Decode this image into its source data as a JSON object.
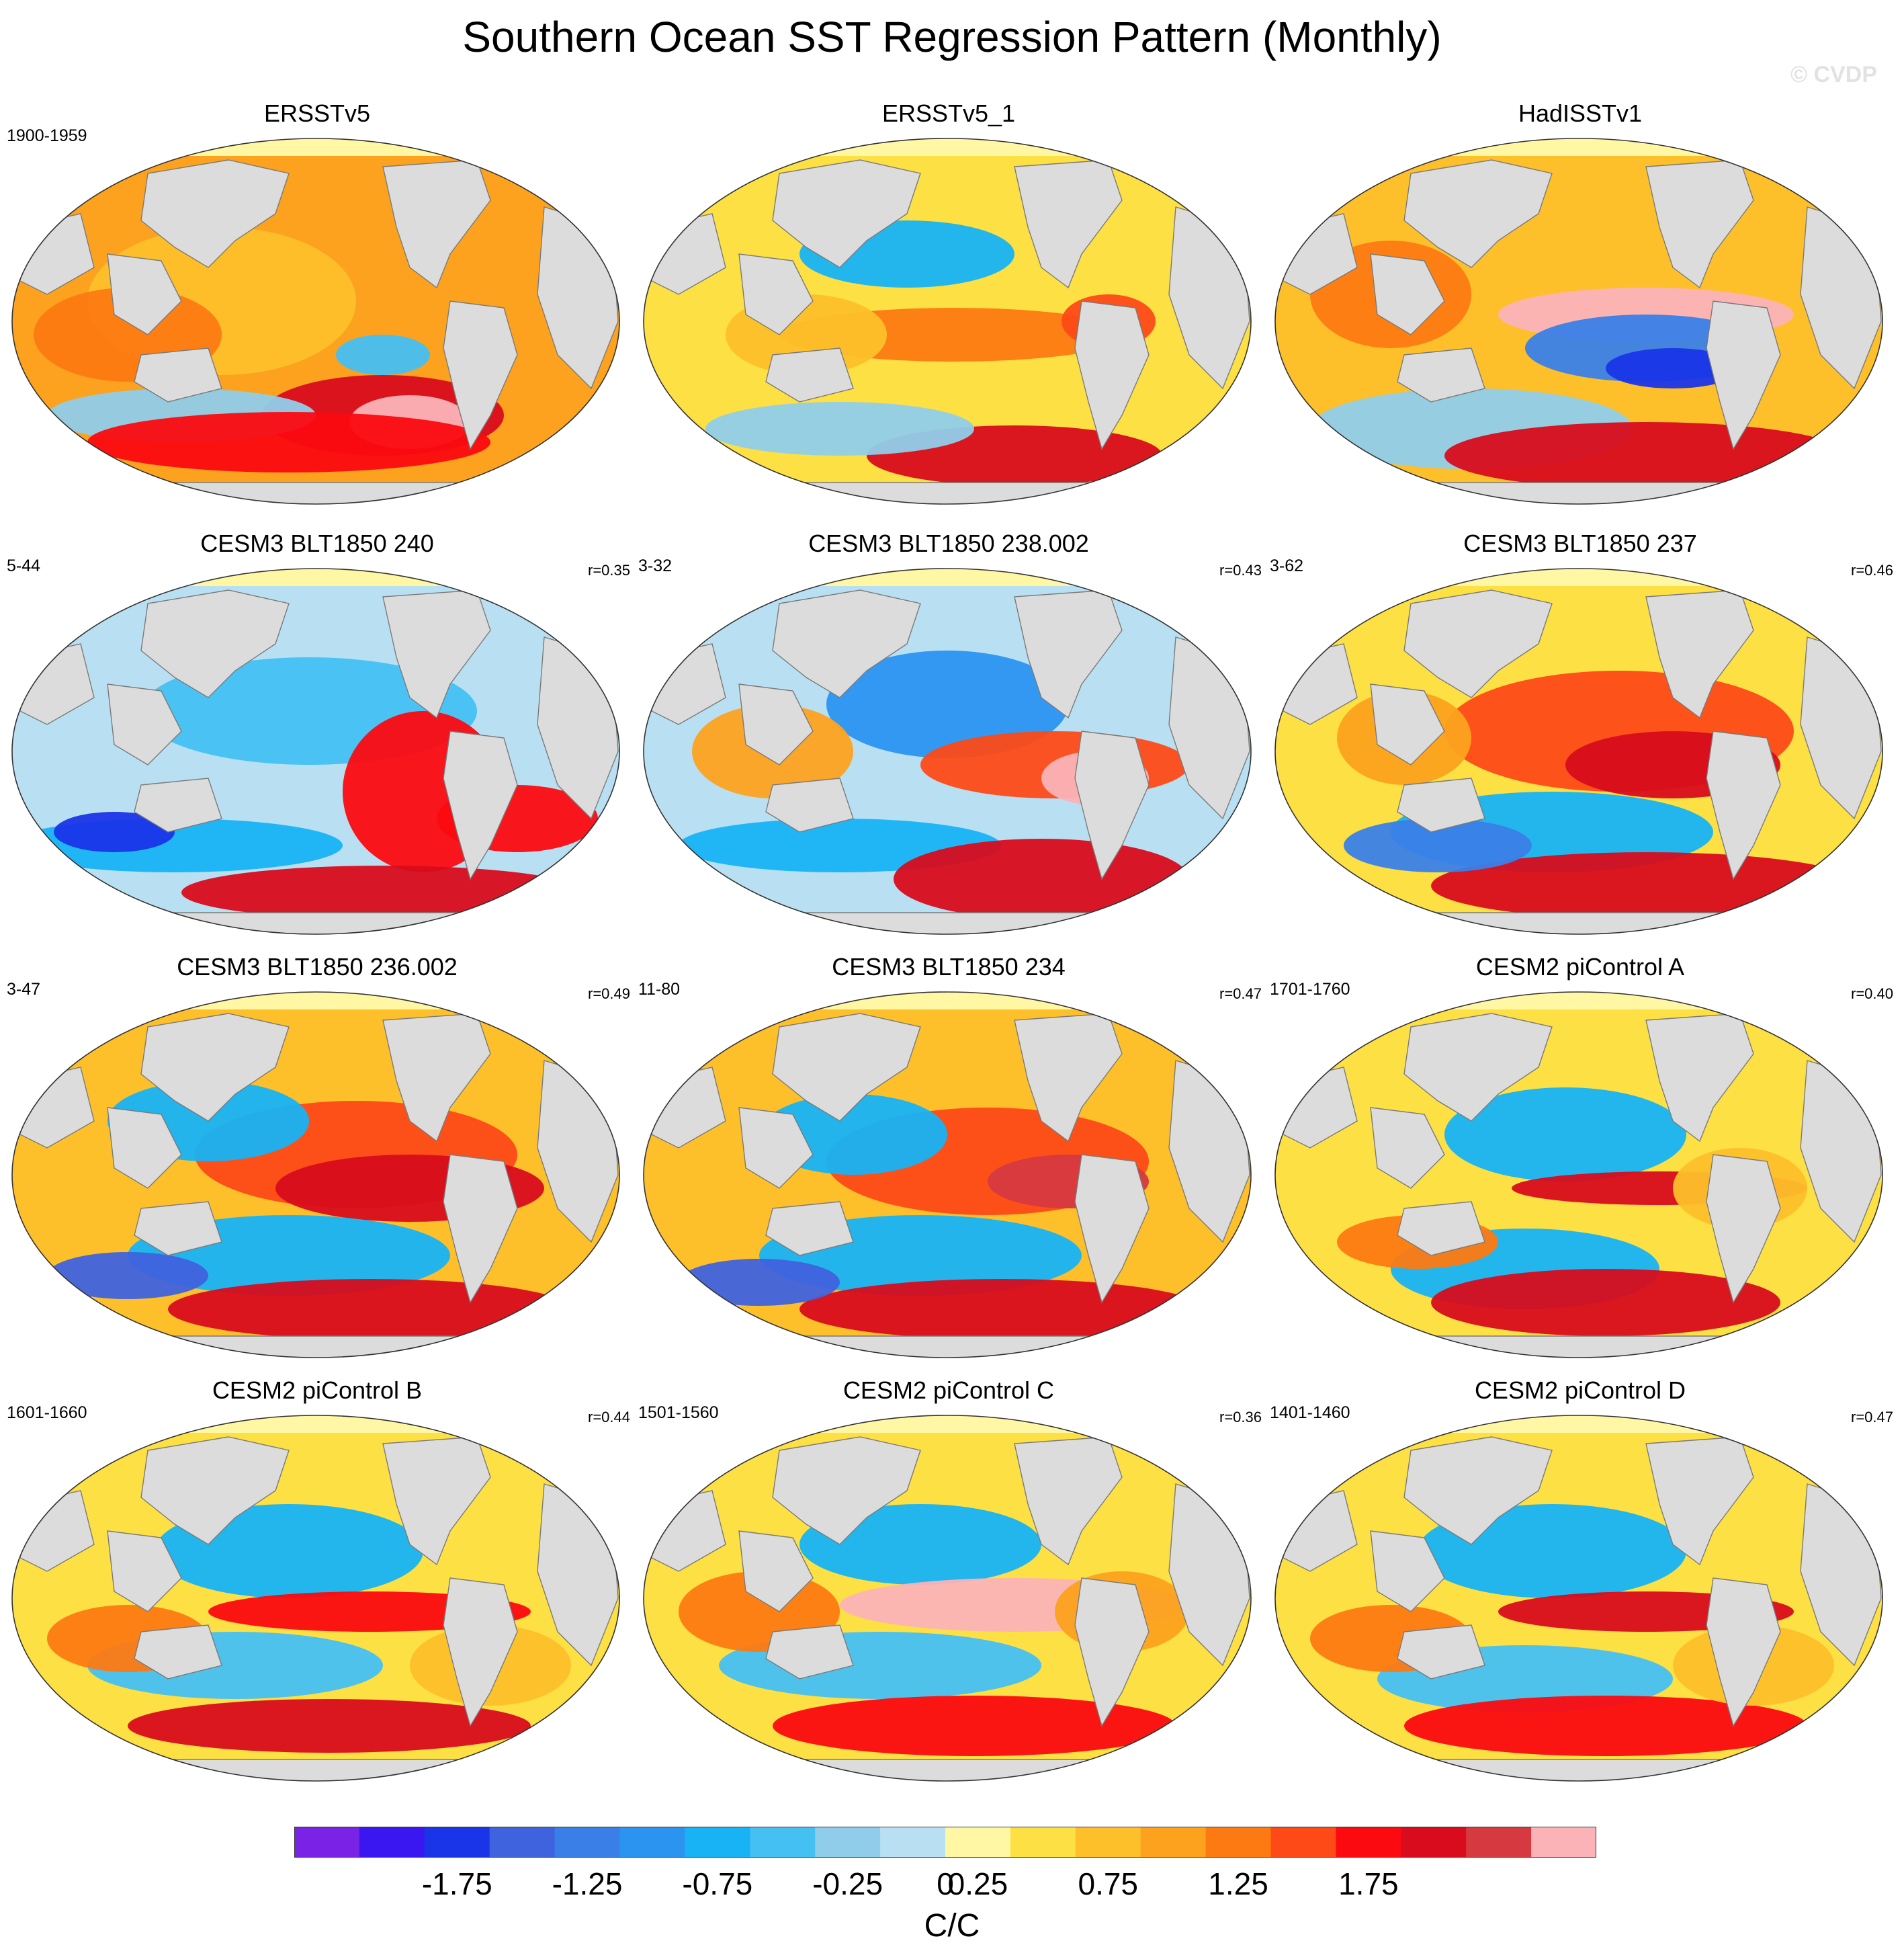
{
  "title": "Southern Ocean SST Regression Pattern (Monthly)",
  "watermark": "© CVDP",
  "panels": [
    {
      "name": "ERSSTv5",
      "years": "1900-1959",
      "r": ""
    },
    {
      "name": "ERSSTv5_1",
      "years": "",
      "r": ""
    },
    {
      "name": "HadISSTv1",
      "years": "",
      "r": ""
    },
    {
      "name": "CESM3 BLT1850 240",
      "years": "5-44",
      "r": "r=0.35"
    },
    {
      "name": "CESM3 BLT1850 238.002",
      "years": "3-32",
      "r": "r=0.43"
    },
    {
      "name": "CESM3 BLT1850 237",
      "years": "3-62",
      "r": "r=0.46"
    },
    {
      "name": "CESM3 BLT1850 236.002",
      "years": "3-47",
      "r": "r=0.49"
    },
    {
      "name": "CESM3 BLT1850 234",
      "years": "11-80",
      "r": "r=0.47"
    },
    {
      "name": "CESM2 piControl A",
      "years": "1701-1760",
      "r": "r=0.40"
    },
    {
      "name": "CESM2 piControl B",
      "years": "1601-1660",
      "r": "r=0.44"
    },
    {
      "name": "CESM2 piControl C",
      "years": "1501-1560",
      "r": "r=0.36"
    },
    {
      "name": "CESM2 piControl D",
      "years": "1401-1460",
      "r": "r=0.47"
    }
  ],
  "colorbar": {
    "units": "C/C",
    "tick_labels": [
      "-1.75",
      "-1.25",
      "-0.75",
      "-0.25",
      "0",
      "0.25",
      "0.75",
      "1.25",
      "1.75"
    ],
    "colors": [
      "#7a22e6",
      "#3a17f0",
      "#1a35e8",
      "#3f62de",
      "#3a7fe8",
      "#2b94f0",
      "#17b3f5",
      "#45c0f3",
      "#90cdea",
      "#b9e0f2",
      "#fff7a4",
      "#fde043",
      "#fdc02a",
      "#fca21f",
      "#fd7a12",
      "#fd4a17",
      "#fb0a10",
      "#d80c1c",
      "#d6393f",
      "#fbb3b8"
    ]
  }
}
